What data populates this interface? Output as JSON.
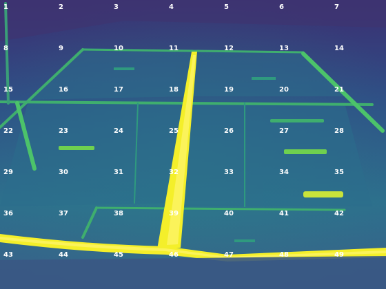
{
  "image": {
    "kind": "thermal camera frame",
    "palette": "viridis",
    "colors": {
      "cold": "#3b2f72",
      "cool": "#2f5f8f",
      "mid": "#2a8a86",
      "warm": "#4cc36a",
      "hot": "#f4ef2a"
    }
  },
  "grid": {
    "columns": 7,
    "rows": 7,
    "labels": [
      "1",
      "2",
      "3",
      "4",
      "5",
      "6",
      "7",
      "8",
      "9",
      "10",
      "11",
      "12",
      "13",
      "14",
      "15",
      "16",
      "17",
      "18",
      "19",
      "20",
      "21",
      "22",
      "23",
      "24",
      "25",
      "26",
      "27",
      "28",
      "29",
      "30",
      "31",
      "32",
      "33",
      "34",
      "35",
      "36",
      "37",
      "38",
      "39",
      "40",
      "41",
      "42",
      "43",
      "44",
      "45",
      "46",
      "47",
      "48",
      "49"
    ]
  }
}
